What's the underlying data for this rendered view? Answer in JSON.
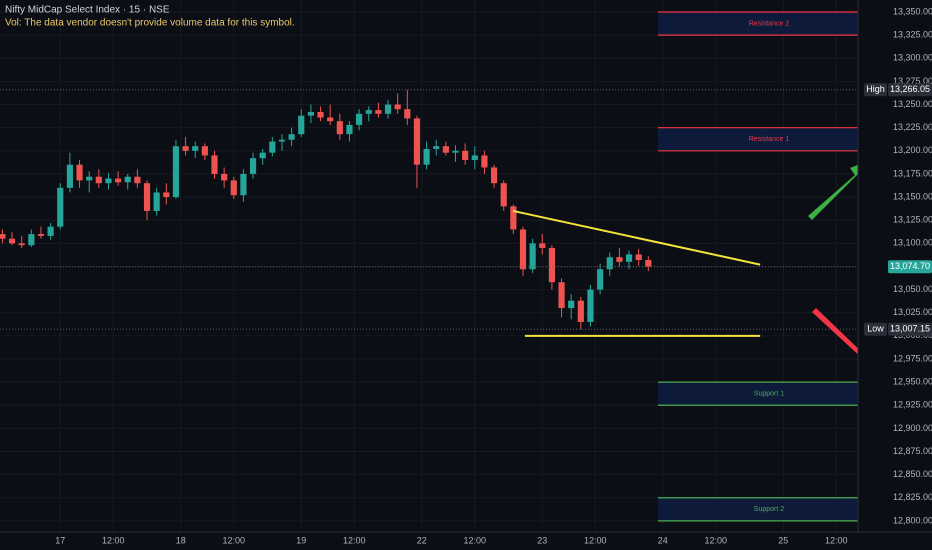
{
  "chart_data": {
    "type": "candlestick",
    "title": "Nifty MidCap Select Index · 15 · NSE",
    "subtitle": "Vol: The data vendor doesn't provide volume data for this symbol.",
    "up_color": "#26a69a",
    "down_color": "#ef5350",
    "candles": [
      [
        13110,
        13115,
        13100,
        13105
      ],
      [
        13105,
        13112,
        13098,
        13100
      ],
      [
        13100,
        13108,
        13095,
        13098
      ],
      [
        13098,
        13115,
        13096,
        13110
      ],
      [
        13110,
        13118,
        13105,
        13108
      ],
      [
        13108,
        13122,
        13104,
        13118
      ],
      [
        13118,
        13165,
        13115,
        13160
      ],
      [
        13160,
        13198,
        13155,
        13185
      ],
      [
        13185,
        13190,
        13160,
        13168
      ],
      [
        13168,
        13178,
        13155,
        13172
      ],
      [
        13172,
        13180,
        13160,
        13165
      ],
      [
        13165,
        13176,
        13158,
        13170
      ],
      [
        13170,
        13178,
        13162,
        13166
      ],
      [
        13166,
        13175,
        13158,
        13172
      ],
      [
        13172,
        13180,
        13160,
        13165
      ],
      [
        13165,
        13168,
        13125,
        13135
      ],
      [
        13135,
        13160,
        13130,
        13155
      ],
      [
        13155,
        13165,
        13142,
        13150
      ],
      [
        13150,
        13212,
        13148,
        13205
      ],
      [
        13205,
        13215,
        13195,
        13200
      ],
      [
        13200,
        13210,
        13192,
        13205
      ],
      [
        13205,
        13208,
        13190,
        13195
      ],
      [
        13195,
        13200,
        13170,
        13175
      ],
      [
        13175,
        13182,
        13160,
        13168
      ],
      [
        13168,
        13172,
        13148,
        13152
      ],
      [
        13152,
        13180,
        13145,
        13175
      ],
      [
        13175,
        13198,
        13170,
        13192
      ],
      [
        13192,
        13202,
        13185,
        13198
      ],
      [
        13198,
        13215,
        13194,
        13210
      ],
      [
        13210,
        13218,
        13200,
        13212
      ],
      [
        13212,
        13225,
        13205,
        13218
      ],
      [
        13218,
        13245,
        13215,
        13238
      ],
      [
        13238,
        13250,
        13230,
        13242
      ],
      [
        13242,
        13248,
        13232,
        13236
      ],
      [
        13236,
        13250,
        13228,
        13232
      ],
      [
        13232,
        13240,
        13212,
        13218
      ],
      [
        13218,
        13232,
        13210,
        13228
      ],
      [
        13228,
        13245,
        13222,
        13240
      ],
      [
        13240,
        13248,
        13232,
        13244
      ],
      [
        13244,
        13252,
        13236,
        13240
      ],
      [
        13240,
        13255,
        13235,
        13250
      ],
      [
        13250,
        13262,
        13240,
        13245
      ],
      [
        13245,
        13266.05,
        13228,
        13235
      ],
      [
        13235,
        13238,
        13160,
        13185
      ],
      [
        13185,
        13210,
        13180,
        13202
      ],
      [
        13202,
        13212,
        13195,
        13205
      ],
      [
        13205,
        13210,
        13195,
        13198
      ],
      [
        13198,
        13206,
        13188,
        13200
      ],
      [
        13200,
        13208,
        13185,
        13190
      ],
      [
        13190,
        13205,
        13180,
        13195
      ],
      [
        13195,
        13200,
        13175,
        13182
      ],
      [
        13182,
        13185,
        13160,
        13165
      ],
      [
        13165,
        13168,
        13135,
        13140
      ],
      [
        13140,
        13142,
        13110,
        13115
      ],
      [
        13115,
        13118,
        13065,
        13072
      ],
      [
        13072,
        13105,
        13068,
        13100
      ],
      [
        13100,
        13110,
        13088,
        13095
      ],
      [
        13095,
        13098,
        13050,
        13058
      ],
      [
        13058,
        13062,
        13020,
        13030
      ],
      [
        13030,
        13045,
        13018,
        13038
      ],
      [
        13038,
        13042,
        13007.15,
        13015
      ],
      [
        13015,
        13055,
        13010,
        13050
      ],
      [
        13050,
        13078,
        13045,
        13072
      ],
      [
        13072,
        13090,
        13065,
        13085
      ],
      [
        13085,
        13095,
        13075,
        13080
      ],
      [
        13080,
        13092,
        13072,
        13088
      ],
      [
        13088,
        13094,
        13076,
        13082
      ],
      [
        13082,
        13086,
        13070,
        13074.7
      ]
    ],
    "xlim": [
      -0.25,
      88.75
    ],
    "xticks": [
      {
        "value": 6,
        "label": "17"
      },
      {
        "value": 11.5,
        "label": "12:00"
      },
      {
        "value": 18.5,
        "label": "18"
      },
      {
        "value": 24,
        "label": "12:00"
      },
      {
        "value": 31,
        "label": "19"
      },
      {
        "value": 36.5,
        "label": "12:00"
      },
      {
        "value": 43.5,
        "label": "22"
      },
      {
        "value": 49,
        "label": "12:00"
      },
      {
        "value": 56,
        "label": "23"
      },
      {
        "value": 61.5,
        "label": "12:00"
      },
      {
        "value": 68.5,
        "label": "24"
      },
      {
        "value": 74,
        "label": "12:00"
      },
      {
        "value": 81,
        "label": "25"
      },
      {
        "value": 86.5,
        "label": "12:00"
      }
    ],
    "ylim": [
      12788,
      13363
    ],
    "yticks": [
      {
        "value": 12800,
        "label": "12,800.00"
      },
      {
        "value": 12825,
        "label": "12,825.00"
      },
      {
        "value": 12850,
        "label": "12,850.00"
      },
      {
        "value": 12875,
        "label": "12,875.00"
      },
      {
        "value": 12900,
        "label": "12,900.00"
      },
      {
        "value": 12925,
        "label": "12,925.00"
      },
      {
        "value": 12950,
        "label": "12,950.00"
      },
      {
        "value": 12975,
        "label": "12,975.00"
      },
      {
        "value": 13000,
        "label": "13,000.00"
      },
      {
        "value": 13025,
        "label": "13,025.00"
      },
      {
        "value": 13050,
        "label": "13,050.00"
      },
      {
        "value": 13075,
        "label": "13,075.00"
      },
      {
        "value": 13100,
        "label": "13,100.00"
      },
      {
        "value": 13125,
        "label": "13,125.00"
      },
      {
        "value": 13150,
        "label": "13,150.00"
      },
      {
        "value": 13175,
        "label": "13,175.00"
      },
      {
        "value": 13200,
        "label": "13,200.00"
      },
      {
        "value": 13225,
        "label": "13,225.00"
      },
      {
        "value": 13250,
        "label": "13,250.00"
      },
      {
        "value": 13275,
        "label": "13,275.00"
      },
      {
        "value": 13300,
        "label": "13,300.00"
      },
      {
        "value": 13325,
        "label": "13,325.00"
      },
      {
        "value": 13350,
        "label": "13,350.00"
      }
    ],
    "grid": true,
    "price_labels": [
      {
        "name": "High",
        "value": 13266.05,
        "label": "13,266.05",
        "color": "#2a2e39"
      },
      {
        "value": 13074.7,
        "label": "13,074.70",
        "color": "#26a69a"
      },
      {
        "name": "Low",
        "value": 13007.15,
        "label": "13,007.15",
        "color": "#2a2e39"
      }
    ],
    "zones": [
      {
        "label": "Resistance 2",
        "top": 13350,
        "bottom": 13325,
        "x_start": 68,
        "color": "#f23645"
      },
      {
        "label": "Resistance 1",
        "top": 13225,
        "bottom": 13200,
        "x_start": 68,
        "color": "#f23645"
      },
      {
        "label": "Support 1",
        "top": 12950,
        "bottom": 12925,
        "x_start": 68,
        "color": "#4caf50"
      },
      {
        "label": "Support 2",
        "top": 12825,
        "bottom": 12800,
        "x_start": 68,
        "color": "#4caf50"
      }
    ],
    "trendlines": [
      {
        "x": [
          52.97,
          78.6
        ],
        "y": [
          13135,
          13077
        ],
        "color": "#f5e33c"
      },
      {
        "x": [
          54.2,
          78.6
        ],
        "y": [
          13000,
          13000
        ],
        "color": "#f5e33c"
      }
    ]
  }
}
